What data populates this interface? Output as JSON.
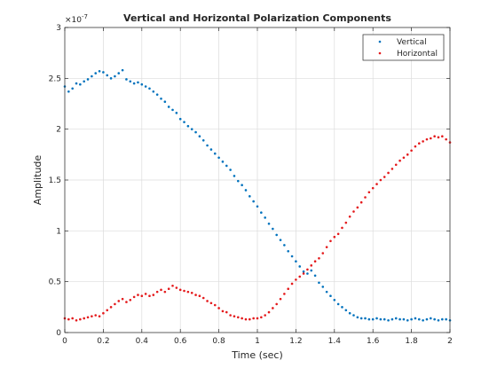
{
  "chart_data": {
    "type": "scatter",
    "title": "Vertical and Horizontal Polarization Components",
    "xlabel": "Time (sec)",
    "ylabel": "Amplitude",
    "y_exponent_label": "×10",
    "y_exponent_power": "-7",
    "xlim": [
      0,
      2
    ],
    "ylim": [
      0,
      3e-07
    ],
    "xticks": [
      0,
      0.2,
      0.4,
      0.6,
      0.8,
      1,
      1.2,
      1.4,
      1.6,
      1.8,
      2
    ],
    "xtick_labels": [
      "0",
      "0.2",
      "0.4",
      "0.6",
      "0.8",
      "1",
      "1.2",
      "1.4",
      "1.6",
      "1.8",
      "2"
    ],
    "yticks": [
      0,
      5e-08,
      1e-07,
      1.5e-07,
      2e-07,
      2.5e-07,
      3e-07
    ],
    "ytick_labels": [
      "0",
      "0.5",
      "1",
      "1.5",
      "2",
      "2.5",
      "3"
    ],
    "grid": true,
    "legend_position": "top-right",
    "series": [
      {
        "name": "Vertical",
        "color": "#0072BD",
        "x": [
          0.0,
          0.02,
          0.04,
          0.06,
          0.08,
          0.1,
          0.12,
          0.14,
          0.16,
          0.18,
          0.2,
          0.22,
          0.24,
          0.26,
          0.28,
          0.3,
          0.32,
          0.34,
          0.36,
          0.38,
          0.4,
          0.42,
          0.44,
          0.46,
          0.48,
          0.5,
          0.52,
          0.54,
          0.56,
          0.58,
          0.6,
          0.62,
          0.64,
          0.66,
          0.68,
          0.7,
          0.72,
          0.74,
          0.76,
          0.78,
          0.8,
          0.82,
          0.84,
          0.86,
          0.88,
          0.9,
          0.92,
          0.94,
          0.96,
          0.98,
          1.0,
          1.02,
          1.04,
          1.06,
          1.08,
          1.1,
          1.12,
          1.14,
          1.16,
          1.18,
          1.2,
          1.22,
          1.24,
          1.26,
          1.28,
          1.3,
          1.32,
          1.34,
          1.36,
          1.38,
          1.4,
          1.42,
          1.44,
          1.46,
          1.48,
          1.5,
          1.52,
          1.54,
          1.56,
          1.58,
          1.6,
          1.62,
          1.64,
          1.66,
          1.68,
          1.7,
          1.72,
          1.74,
          1.76,
          1.78,
          1.8,
          1.82,
          1.84,
          1.86,
          1.88,
          1.9,
          1.92,
          1.94,
          1.96,
          1.98,
          2.0
        ],
        "y": [
          2.42e-07,
          2.37e-07,
          2.4e-07,
          2.45e-07,
          2.44e-07,
          2.47e-07,
          2.49e-07,
          2.52e-07,
          2.55e-07,
          2.57e-07,
          2.56e-07,
          2.53e-07,
          2.5e-07,
          2.52e-07,
          2.55e-07,
          2.58e-07,
          2.49e-07,
          2.47e-07,
          2.45e-07,
          2.46e-07,
          2.44e-07,
          2.42e-07,
          2.4e-07,
          2.37e-07,
          2.34e-07,
          2.3e-07,
          2.27e-07,
          2.22e-07,
          2.19e-07,
          2.16e-07,
          2.1e-07,
          2.07e-07,
          2.03e-07,
          2e-07,
          1.97e-07,
          1.93e-07,
          1.89e-07,
          1.84e-07,
          1.8e-07,
          1.76e-07,
          1.72e-07,
          1.68e-07,
          1.64e-07,
          1.6e-07,
          1.54e-07,
          1.49e-07,
          1.45e-07,
          1.4e-07,
          1.34e-07,
          1.29e-07,
          1.24e-07,
          1.18e-07,
          1.13e-07,
          1.07e-07,
          1.02e-07,
          9.6e-08,
          9.1e-08,
          8.6e-08,
          8e-08,
          7.5e-08,
          7e-08,
          6.5e-08,
          6e-08,
          5.8e-08,
          6.1e-08,
          5.6e-08,
          4.9e-08,
          4.5e-08,
          4e-08,
          3.6e-08,
          3.2e-08,
          2.8e-08,
          2.5e-08,
          2.2e-08,
          1.9e-08,
          1.7e-08,
          1.5e-08,
          1.4e-08,
          1.4e-08,
          1.3e-08,
          1.3e-08,
          1.4e-08,
          1.3e-08,
          1.3e-08,
          1.2e-08,
          1.3e-08,
          1.4e-08,
          1.3e-08,
          1.3e-08,
          1.2e-08,
          1.3e-08,
          1.4e-08,
          1.3e-08,
          1.2e-08,
          1.3e-08,
          1.4e-08,
          1.3e-08,
          1.2e-08,
          1.3e-08,
          1.3e-08,
          1.2e-08
        ]
      },
      {
        "name": "Horizontal",
        "color": "#E41A1C",
        "x": [
          0.0,
          0.02,
          0.04,
          0.06,
          0.08,
          0.1,
          0.12,
          0.14,
          0.16,
          0.18,
          0.2,
          0.22,
          0.24,
          0.26,
          0.28,
          0.3,
          0.32,
          0.34,
          0.36,
          0.38,
          0.4,
          0.42,
          0.44,
          0.46,
          0.48,
          0.5,
          0.52,
          0.54,
          0.56,
          0.58,
          0.6,
          0.62,
          0.64,
          0.66,
          0.68,
          0.7,
          0.72,
          0.74,
          0.76,
          0.78,
          0.8,
          0.82,
          0.84,
          0.86,
          0.88,
          0.9,
          0.92,
          0.94,
          0.96,
          0.98,
          1.0,
          1.02,
          1.04,
          1.06,
          1.08,
          1.1,
          1.12,
          1.14,
          1.16,
          1.18,
          1.2,
          1.22,
          1.24,
          1.26,
          1.28,
          1.3,
          1.32,
          1.34,
          1.36,
          1.38,
          1.4,
          1.42,
          1.44,
          1.46,
          1.48,
          1.5,
          1.52,
          1.54,
          1.56,
          1.58,
          1.6,
          1.62,
          1.64,
          1.66,
          1.68,
          1.7,
          1.72,
          1.74,
          1.76,
          1.78,
          1.8,
          1.82,
          1.84,
          1.86,
          1.88,
          1.9,
          1.92,
          1.94,
          1.96,
          1.98,
          2.0
        ],
        "y": [
          1.4e-08,
          1.3e-08,
          1.4e-08,
          1.2e-08,
          1.3e-08,
          1.4e-08,
          1.5e-08,
          1.6e-08,
          1.7e-08,
          1.6e-08,
          1.9e-08,
          2.2e-08,
          2.5e-08,
          2.8e-08,
          3.1e-08,
          3.3e-08,
          3e-08,
          3.2e-08,
          3.5e-08,
          3.7e-08,
          3.6e-08,
          3.8e-08,
          3.6e-08,
          3.7e-08,
          4e-08,
          4.2e-08,
          4e-08,
          4.3e-08,
          4.6e-08,
          4.4e-08,
          4.2e-08,
          4.1e-08,
          4e-08,
          3.9e-08,
          3.7e-08,
          3.6e-08,
          3.4e-08,
          3.1e-08,
          2.9e-08,
          2.7e-08,
          2.4e-08,
          2.1e-08,
          2e-08,
          1.7e-08,
          1.6e-08,
          1.5e-08,
          1.4e-08,
          1.3e-08,
          1.3e-08,
          1.4e-08,
          1.4e-08,
          1.5e-08,
          1.7e-08,
          2e-08,
          2.4e-08,
          2.8e-08,
          3.3e-08,
          3.8e-08,
          4.3e-08,
          4.8e-08,
          5.2e-08,
          5.5e-08,
          5.8e-08,
          6.2e-08,
          6.6e-08,
          7e-08,
          7.3e-08,
          7.8e-08,
          8.4e-08,
          9e-08,
          9.4e-08,
          9.7e-08,
          1.03e-07,
          1.08e-07,
          1.14e-07,
          1.19e-07,
          1.23e-07,
          1.28e-07,
          1.33e-07,
          1.38e-07,
          1.42e-07,
          1.46e-07,
          1.5e-07,
          1.53e-07,
          1.57e-07,
          1.61e-07,
          1.65e-07,
          1.69e-07,
          1.72e-07,
          1.75e-07,
          1.79e-07,
          1.83e-07,
          1.86e-07,
          1.88e-07,
          1.9e-07,
          1.91e-07,
          1.93e-07,
          1.92e-07,
          1.93e-07,
          1.9e-07,
          1.87e-07
        ]
      }
    ]
  }
}
